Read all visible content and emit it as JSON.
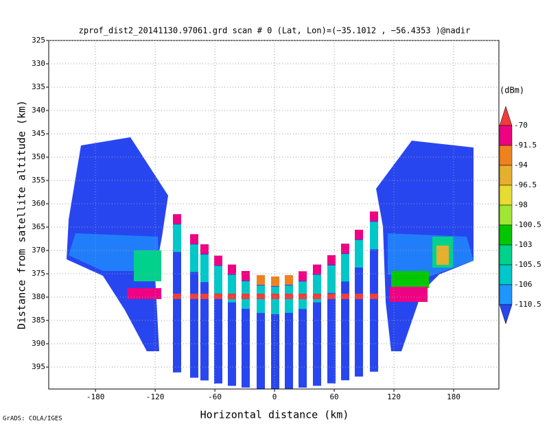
{
  "chart_data": {
    "type": "profile",
    "title": "zprof_dist2_20141130.97061.grd  scan # 0  (Lat, Lon)=(−35.1012 , −56.4353 )@nadir",
    "xlabel": "Horizontal distance (km)",
    "ylabel": "Distance from satellite altitude (km)",
    "footer": "GrADS: COLA/IGES",
    "xlim": [
      -227,
      225.5
    ],
    "ylim": [
      325,
      399.7
    ],
    "xticks": [
      -180,
      -120,
      -60,
      0,
      60,
      120,
      180
    ],
    "yticks": [
      325,
      330,
      335,
      340,
      345,
      350,
      355,
      360,
      365,
      370,
      375,
      380,
      385,
      390,
      395
    ],
    "grid": true,
    "colorbar": {
      "unit": "(dBm)",
      "levels": [
        -70,
        -91.5,
        -94,
        -96.5,
        -98,
        -100.5,
        -103,
        -105.5,
        -106,
        -110.5
      ],
      "colors": [
        "#f03c3c",
        "#f00082",
        "#f0821e",
        "#e6af2d",
        "#e6dc32",
        "#a0e632",
        "#00c800",
        "#00d28c",
        "#00c8c8",
        "#1e96ff",
        "#2846f0"
      ]
    }
  }
}
